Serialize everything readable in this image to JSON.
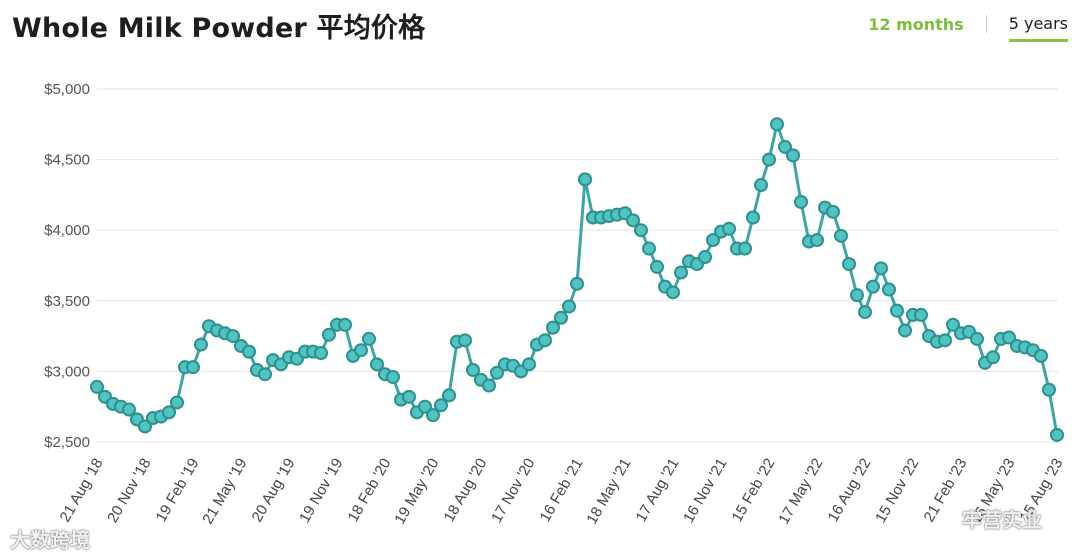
{
  "header": {
    "title": "Whole Milk Powder 平均价格",
    "tabs": [
      {
        "label": "12 months",
        "active": false
      },
      {
        "label": "5 years",
        "active": true
      }
    ]
  },
  "watermarks": {
    "left": "大数跨境",
    "right": "牢营实业"
  },
  "colors": {
    "line": "#3aa6a6",
    "marker_fill": "#4fc4c0",
    "marker_stroke": "#2d8f8f",
    "grid": "#e3e3e3",
    "accent": "#8bc34a"
  },
  "chart_data": {
    "type": "line",
    "ylim": [
      2500,
      5000
    ],
    "yticks": [
      2500,
      3000,
      3500,
      4000,
      4500,
      5000
    ],
    "ytick_labels": [
      "$2,500",
      "$3,000",
      "$3,500",
      "$4,000",
      "$4,500",
      "$5,000"
    ],
    "xtick_labels": [
      "21 Aug '18",
      "20 Nov '18",
      "19 Feb '19",
      "21 May '19",
      "20 Aug '19",
      "19 Nov '19",
      "18 Feb '20",
      "19 May '20",
      "18 Aug '20",
      "17 Nov '20",
      "16 Feb '21",
      "18 May '21",
      "17 Aug '21",
      "16 Nov '21",
      "15 Feb '22",
      "17 May '22",
      "16 Aug '22",
      "15 Nov '22",
      "21 Feb '23",
      "16 May '23",
      "15 Aug '23"
    ],
    "xtick_positions": [
      0,
      6,
      12,
      18,
      24,
      30,
      36,
      42,
      48,
      54,
      60,
      66,
      72,
      78,
      84,
      90,
      96,
      102,
      108,
      114,
      120
    ],
    "grid": true,
    "series": [
      {
        "values": [
          2890,
          2820,
          2770,
          2750,
          2730,
          2660,
          2610,
          2670,
          2680,
          2710,
          2780,
          3030,
          3030,
          3190,
          3320,
          3290,
          3270,
          3250,
          3180,
          3140,
          3010,
          2980,
          3080,
          3050,
          3100,
          3090,
          3140,
          3140,
          3130,
          3260,
          3330,
          3330,
          3110,
          3150,
          3230,
          3050,
          2980,
          2960,
          2800,
          2820,
          2710,
          2750,
          2690,
          2760,
          2830,
          3210,
          3220,
          3010,
          2940,
          2900,
          2990,
          3050,
          3040,
          3000,
          3050,
          3190,
          3220,
          3310,
          3380,
          3460,
          3620,
          4360,
          4090,
          4090,
          4100,
          4110,
          4120,
          4070,
          4000,
          3870,
          3740,
          3600,
          3560,
          3700,
          3780,
          3760,
          3810,
          3930,
          3990,
          4010,
          3870,
          3870,
          4090,
          4320,
          4500,
          4750,
          4590,
          4530,
          4200,
          3920,
          3930,
          4160,
          4130,
          3960,
          3760,
          3540,
          3420,
          3600,
          3730,
          3580,
          3430,
          3290,
          3400,
          3400,
          3250,
          3210,
          3220,
          3330,
          3270,
          3280,
          3230,
          3060,
          3100,
          3230,
          3240,
          3180,
          3170,
          3150,
          3110,
          2870,
          2550
        ]
      }
    ]
  }
}
